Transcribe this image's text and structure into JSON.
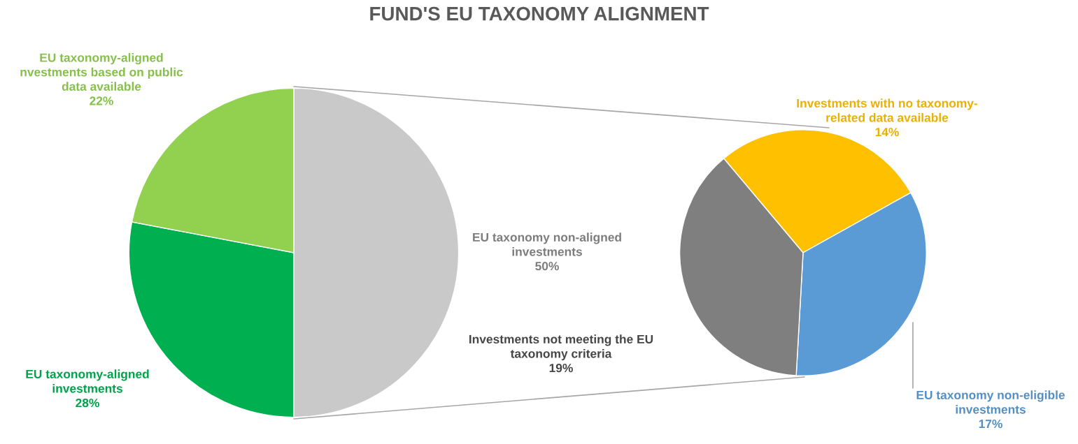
{
  "chart_data": [
    {
      "type": "pie",
      "title": "FUND'S EU TAXONOMY ALIGNMENT",
      "categories": [
        "EU taxonomy non-aligned\ninvestments",
        "EU taxonomy-aligned\ninvestments",
        "EU taxonomy-aligned\nnvestments based on public\ndata available"
      ],
      "values": [
        50,
        28,
        22
      ],
      "value_labels": [
        "50%",
        "28%",
        "22%"
      ],
      "colors": [
        "#c9c9c9",
        "#00b050",
        "#92d050"
      ]
    },
    {
      "type": "pie",
      "categories": [
        "Investments with no taxonomy-\nrelated data available",
        "EU taxonomy non-eligible\ninvestments",
        "Investments not meeting the EU\ntaxonomy criteria"
      ],
      "values": [
        14,
        17,
        19
      ],
      "value_labels": [
        "14%",
        "17%",
        "19%"
      ],
      "colors": [
        "#ffc000",
        "#5b9bd5",
        "#7f7f7f"
      ]
    }
  ]
}
